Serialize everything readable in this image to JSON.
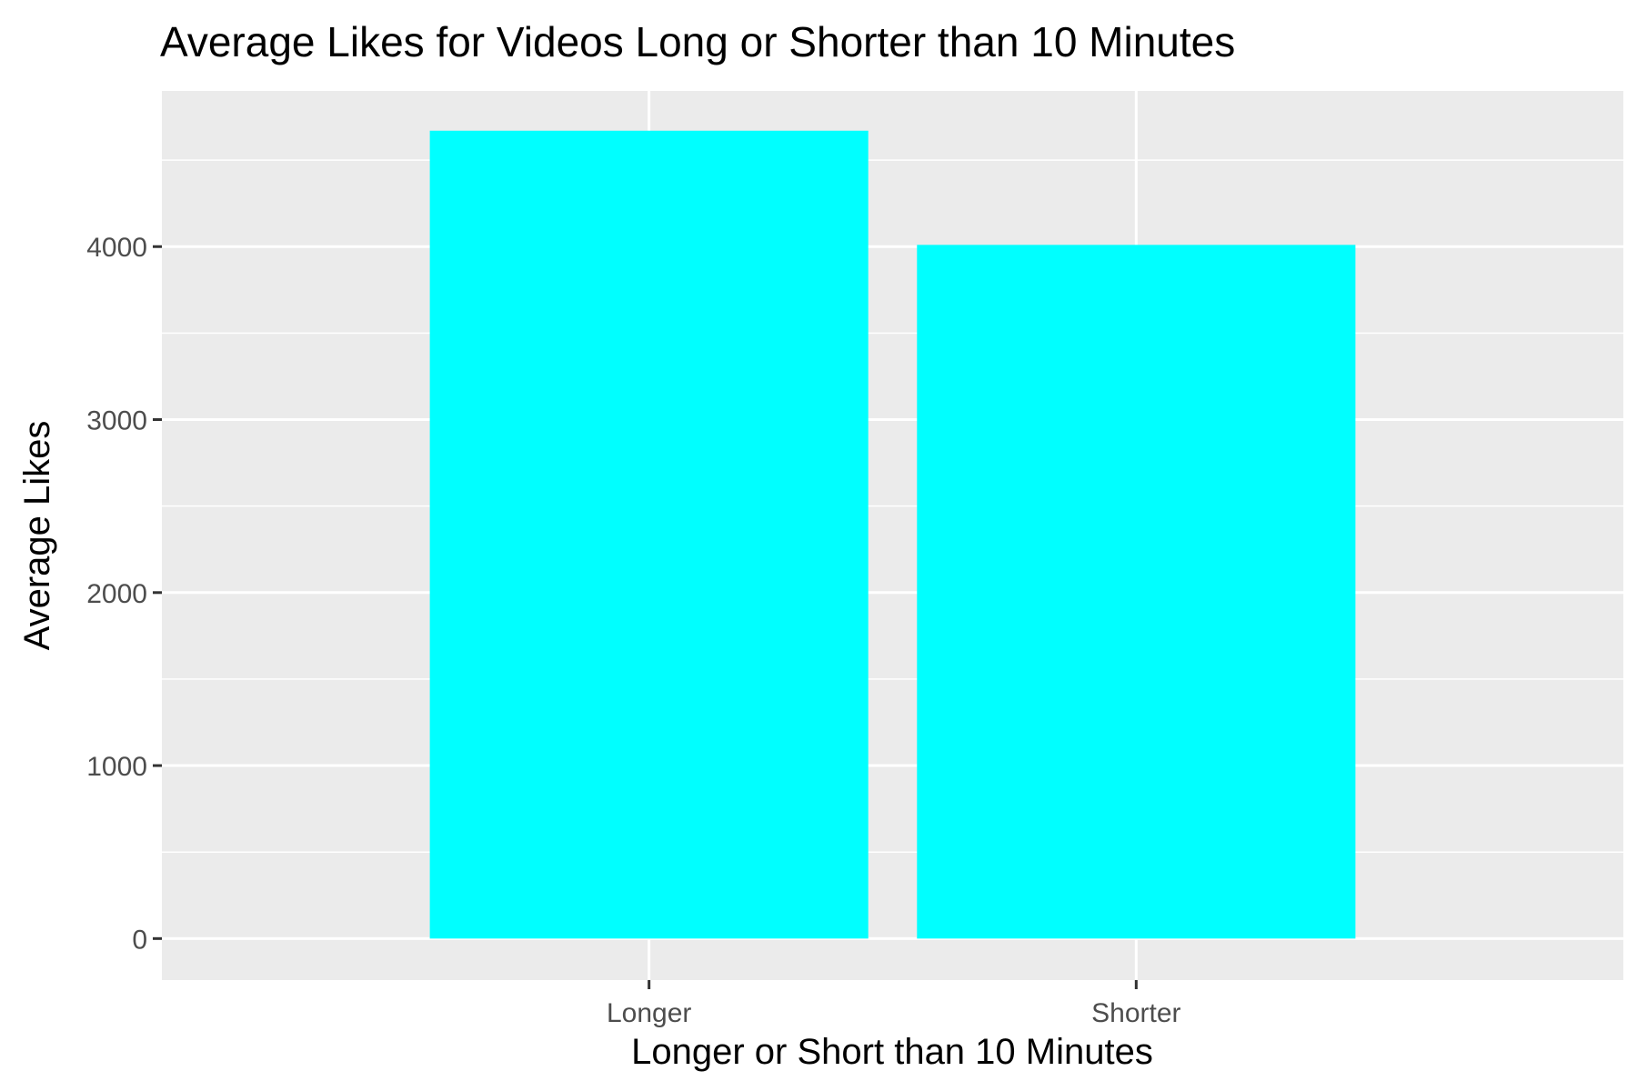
{
  "chart_data": {
    "type": "bar",
    "title": "Average Likes for Videos Long or Shorter than 10 Minutes",
    "xlabel": "Longer or Short than 10 Minutes",
    "ylabel": "Average Likes",
    "categories": [
      "Longer",
      "Shorter"
    ],
    "values": [
      4670,
      4010
    ],
    "ylim": [
      -240,
      4900
    ],
    "yticks": [
      0,
      1000,
      2000,
      3000,
      4000
    ],
    "ytick_labels": [
      "0",
      "1000",
      "2000",
      "3000",
      "4000"
    ],
    "bar_color": "#00ffff",
    "panel_color": "#ebebeb",
    "grid": true,
    "legend": "none"
  }
}
